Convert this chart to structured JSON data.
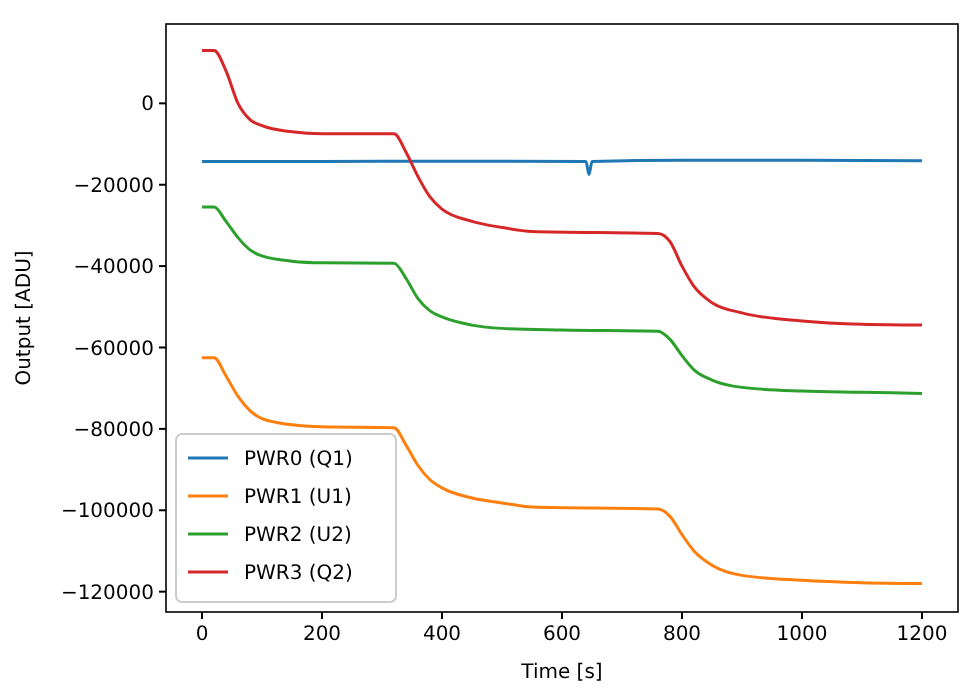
{
  "chart_data": {
    "type": "line",
    "xlabel": "Time [s]",
    "ylabel": "Output [ADU]",
    "xlim": [
      -60,
      1260
    ],
    "ylim": [
      -125000,
      19500
    ],
    "xticks": [
      0,
      200,
      400,
      600,
      800,
      1000,
      1200
    ],
    "yticks": [
      {
        "value": 0,
        "label": "0"
      },
      {
        "value": -20000,
        "label": "−20000"
      },
      {
        "value": -40000,
        "label": "−40000"
      },
      {
        "value": -60000,
        "label": "−60000"
      },
      {
        "value": -80000,
        "label": "−80000"
      },
      {
        "value": -100000,
        "label": "−100000"
      },
      {
        "value": -120000,
        "label": "−120000"
      }
    ],
    "grid": false,
    "legend": "bottom left",
    "marker": "none",
    "line_style": "solid",
    "series": [
      {
        "name": "PWR0 (Q1)",
        "color": "#1f77b4",
        "x": [
          0,
          200,
          400,
          640,
          645,
          650,
          800,
          1000,
          1200
        ],
        "values": [
          -14300,
          -14300,
          -14200,
          -14300,
          -17500,
          -14300,
          -14000,
          -14000,
          -14100
        ]
      },
      {
        "name": "PWR1 (U1)",
        "color": "#ff7f0e",
        "x": [
          0,
          20,
          40,
          60,
          80,
          100,
          150,
          200,
          320,
          340,
          360,
          380,
          400,
          450,
          500,
          550,
          760,
          780,
          800,
          820,
          850,
          900,
          1000,
          1100,
          1200
        ],
        "values": [
          -62500,
          -62500,
          -67000,
          -72000,
          -75500,
          -77500,
          -79000,
          -79500,
          -79700,
          -84000,
          -89000,
          -92500,
          -94500,
          -97000,
          -98200,
          -99200,
          -99700,
          -101500,
          -106000,
          -110000,
          -113500,
          -116000,
          -117200,
          -117800,
          -118000
        ]
      },
      {
        "name": "PWR2 (U2)",
        "color": "#2ca02c",
        "x": [
          0,
          20,
          40,
          60,
          80,
          100,
          150,
          200,
          320,
          340,
          360,
          380,
          400,
          450,
          500,
          600,
          760,
          780,
          800,
          820,
          850,
          900,
          1000,
          1100,
          1200
        ],
        "values": [
          -25500,
          -25500,
          -29000,
          -33000,
          -36000,
          -37500,
          -38800,
          -39200,
          -39300,
          -43000,
          -48000,
          -51000,
          -52500,
          -54500,
          -55300,
          -55700,
          -56000,
          -58000,
          -62000,
          -65500,
          -68000,
          -69800,
          -70700,
          -71000,
          -71300
        ]
      },
      {
        "name": "PWR3 (Q2)",
        "color": "#d62728",
        "x": [
          0,
          20,
          40,
          60,
          80,
          100,
          150,
          200,
          320,
          340,
          360,
          380,
          400,
          450,
          500,
          550,
          760,
          780,
          800,
          820,
          850,
          900,
          1000,
          1100,
          1200
        ],
        "values": [
          13000,
          13000,
          8000,
          0,
          -4000,
          -5500,
          -7000,
          -7500,
          -7500,
          -12000,
          -18000,
          -23000,
          -26000,
          -29000,
          -30500,
          -31500,
          -32000,
          -34000,
          -40000,
          -45000,
          -49000,
          -51500,
          -53500,
          -54300,
          -54500
        ]
      }
    ]
  }
}
